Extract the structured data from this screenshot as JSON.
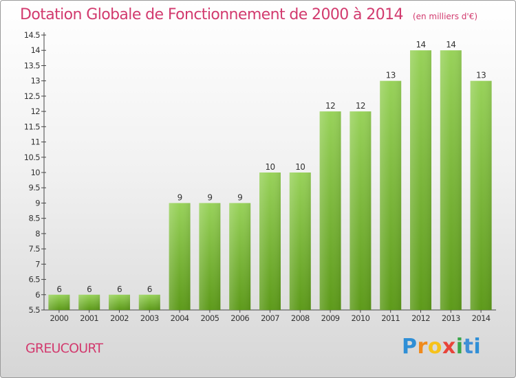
{
  "header": {
    "title": "Dotation Globale de Fonctionnement de 2000 à 2014",
    "unit": "(en milliers d'€)"
  },
  "footer": {
    "commune": "GREUCOURT",
    "logo": "Proxiti"
  },
  "colors": {
    "title": "#d23a6e",
    "bar_light": "#98d25a",
    "bar_dark": "#5d9a1a"
  },
  "chart_data": {
    "type": "bar",
    "title": "Dotation Globale de Fonctionnement de 2000 à 2014",
    "subtitle": "(en milliers d'€)",
    "xlabel": "",
    "ylabel": "",
    "ylim": [
      5.5,
      14.5
    ],
    "yticks": [
      5.5,
      6,
      6.5,
      7,
      7.5,
      8,
      8.5,
      9,
      9.5,
      10,
      10.5,
      11,
      11.5,
      12,
      12.5,
      13,
      13.5,
      14,
      14.5
    ],
    "grid": false,
    "categories": [
      "2000",
      "2001",
      "2002",
      "2003",
      "2004",
      "2005",
      "2006",
      "2007",
      "2008",
      "2009",
      "2010",
      "2011",
      "2012",
      "2013",
      "2014"
    ],
    "values": [
      6,
      6,
      6,
      6,
      9,
      9,
      9,
      10,
      10,
      12,
      12,
      13,
      14,
      14,
      13
    ]
  }
}
